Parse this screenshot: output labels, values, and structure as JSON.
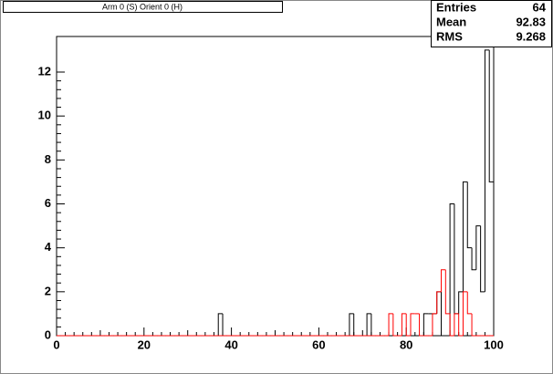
{
  "chart_data": {
    "type": "histogram",
    "title": "Arm 0 (S) Orient 0 (H)",
    "stats": [
      {
        "label": "Entries",
        "value": 64
      },
      {
        "label": "Mean",
        "value": 92.83
      },
      {
        "label": "RMS",
        "value": 9.268
      }
    ],
    "bins": [
      0,
      1,
      2,
      3,
      4,
      5,
      6,
      7,
      8,
      9,
      10,
      11,
      12,
      13,
      14,
      15,
      16,
      17,
      18,
      19,
      20,
      21,
      22,
      23,
      24,
      25,
      26,
      27,
      28,
      29,
      30,
      31,
      32,
      33,
      34,
      35,
      36,
      37,
      38,
      39,
      40,
      41,
      42,
      43,
      44,
      45,
      46,
      47,
      48,
      49,
      50,
      51,
      52,
      53,
      54,
      55,
      56,
      57,
      58,
      59,
      60,
      61,
      62,
      63,
      64,
      65,
      66,
      67,
      68,
      69,
      70,
      71,
      72,
      73,
      74,
      75,
      76,
      77,
      78,
      79,
      80,
      81,
      82,
      83,
      84,
      85,
      86,
      87,
      88,
      89,
      90,
      91,
      92,
      93,
      94,
      95,
      96,
      97,
      98,
      99,
      100
    ],
    "series": [
      {
        "color": "#000000",
        "values": [
          0,
          0,
          0,
          0,
          0,
          0,
          0,
          0,
          0,
          0,
          0,
          0,
          0,
          0,
          0,
          0,
          0,
          0,
          0,
          0,
          0,
          0,
          0,
          0,
          0,
          0,
          0,
          0,
          0,
          0,
          0,
          0,
          0,
          0,
          0,
          0,
          0,
          1,
          0,
          0,
          0,
          0,
          0,
          0,
          0,
          0,
          0,
          0,
          0,
          0,
          0,
          0,
          0,
          0,
          0,
          0,
          0,
          0,
          0,
          0,
          0,
          0,
          0,
          0,
          0,
          0,
          0,
          1,
          0,
          0,
          0,
          1,
          0,
          0,
          0,
          0,
          0,
          0,
          0,
          0,
          0,
          0,
          0,
          0,
          1,
          1,
          1,
          2,
          0,
          0,
          6,
          1,
          2,
          7,
          4,
          3,
          5,
          2,
          13,
          7
        ]
      },
      {
        "color": "#ff0000",
        "values": [
          0,
          0,
          0,
          0,
          0,
          0,
          0,
          0,
          0,
          0,
          0,
          0,
          0,
          0,
          0,
          0,
          0,
          0,
          0,
          0,
          0,
          0,
          0,
          0,
          0,
          0,
          0,
          0,
          0,
          0,
          0,
          0,
          0,
          0,
          0,
          0,
          0,
          0,
          0,
          0,
          0,
          0,
          0,
          0,
          0,
          0,
          0,
          0,
          0,
          0,
          0,
          0,
          0,
          0,
          0,
          0,
          0,
          0,
          0,
          0,
          0,
          0,
          0,
          0,
          0,
          0,
          0,
          0,
          0,
          0,
          0,
          0,
          0,
          0,
          0,
          0,
          1,
          0,
          0,
          1,
          0,
          1,
          1,
          0,
          0,
          0,
          1,
          2,
          3,
          1,
          0,
          1,
          0,
          2,
          1,
          0,
          0,
          0,
          0,
          0
        ]
      }
    ],
    "xlim": [
      0,
      100
    ],
    "xticks": [
      0,
      20,
      40,
      60,
      80,
      100
    ],
    "ylim": [
      0,
      13.62
    ],
    "yticks": [
      0,
      2,
      4,
      6,
      8,
      10,
      12
    ]
  }
}
